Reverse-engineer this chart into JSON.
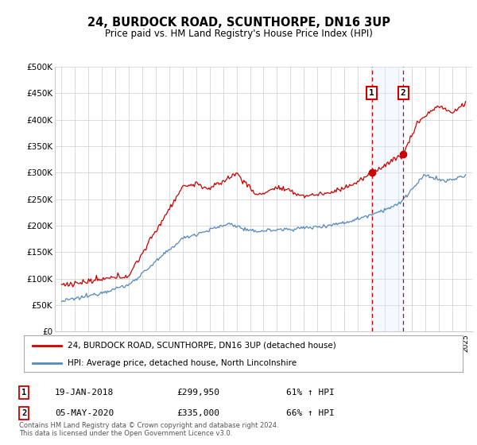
{
  "title": "24, BURDOCK ROAD, SCUNTHORPE, DN16 3UP",
  "subtitle": "Price paid vs. HM Land Registry's House Price Index (HPI)",
  "red_label": "24, BURDOCK ROAD, SCUNTHORPE, DN16 3UP (detached house)",
  "blue_label": "HPI: Average price, detached house, North Lincolnshire",
  "marker1_date": "19-JAN-2018",
  "marker1_price": 299950,
  "marker1_price_str": "£299,950",
  "marker1_pct": "61% ↑ HPI",
  "marker2_date": "05-MAY-2020",
  "marker2_price": 335000,
  "marker2_price_str": "£335,000",
  "marker2_pct": "66% ↑ HPI",
  "sale1_year": 2018.05,
  "sale2_year": 2020.37,
  "footer": "Contains HM Land Registry data © Crown copyright and database right 2024.\nThis data is licensed under the Open Government Licence v3.0.",
  "red_color": "#cc0000",
  "blue_color": "#5588bb",
  "shade_color": "#ddeeff",
  "grid_color": "#cccccc",
  "background_color": "#ffffff",
  "ylim": [
    0,
    500000
  ],
  "xlim_start": 1994.5,
  "xlim_end": 2025.5
}
